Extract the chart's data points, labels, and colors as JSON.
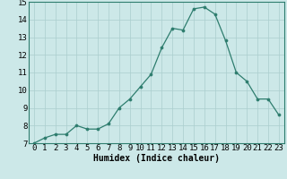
{
  "x": [
    0,
    1,
    2,
    3,
    4,
    5,
    6,
    7,
    8,
    9,
    10,
    11,
    12,
    13,
    14,
    15,
    16,
    17,
    18,
    19,
    20,
    21,
    22,
    23
  ],
  "y": [
    7.0,
    7.3,
    7.5,
    7.5,
    8.0,
    7.8,
    7.8,
    8.1,
    9.0,
    9.5,
    10.2,
    10.9,
    12.4,
    13.5,
    13.4,
    14.6,
    14.7,
    14.3,
    12.8,
    11.0,
    10.5,
    9.5,
    9.5,
    8.6
  ],
  "xlabel": "Humidex (Indice chaleur)",
  "ylim": [
    7,
    15
  ],
  "xlim_min": -0.5,
  "xlim_max": 23.5,
  "yticks": [
    7,
    8,
    9,
    10,
    11,
    12,
    13,
    14,
    15
  ],
  "xticks": [
    0,
    1,
    2,
    3,
    4,
    5,
    6,
    7,
    8,
    9,
    10,
    11,
    12,
    13,
    14,
    15,
    16,
    17,
    18,
    19,
    20,
    21,
    22,
    23
  ],
  "line_color": "#2e7d6e",
  "marker_color": "#2e7d6e",
  "bg_color": "#cce8e8",
  "grid_color": "#aacece",
  "xlabel_fontsize": 7,
  "tick_fontsize": 6.5
}
